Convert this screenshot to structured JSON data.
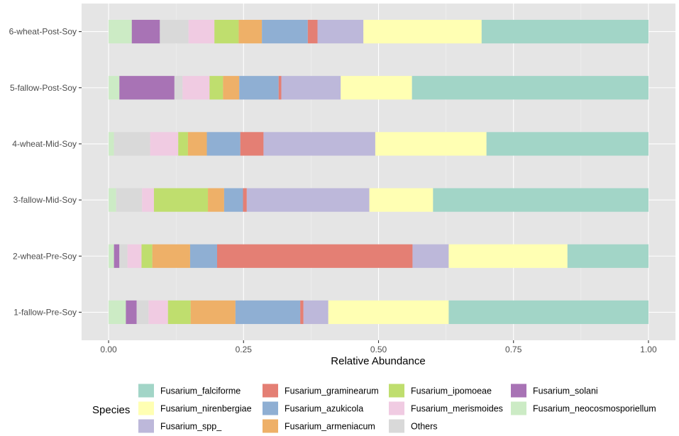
{
  "chart_data": {
    "type": "bar",
    "orientation": "horizontal",
    "stacked": true,
    "title": "",
    "xlabel": "Relative Abundance",
    "ylabel": "",
    "xlim": [
      -0.05,
      1.05
    ],
    "x_ticks": [
      0,
      0.25,
      0.5,
      0.75,
      1
    ],
    "x_tick_labels": [
      "0.00",
      "0.25",
      "0.50",
      "0.75",
      "1.00"
    ],
    "grid": true,
    "categories": [
      "1-fallow-Pre-Soy",
      "2-wheat-Pre-Soy",
      "3-fallow-Mid-Soy",
      "4-wheat-Mid-Soy",
      "5-fallow-Post-Soy",
      "6-wheat-Post-Soy"
    ],
    "legend": {
      "title": "Species",
      "position": "bottom",
      "order": [
        "Fusarium_falciforme",
        "Fusarium_nirenbergiae",
        "Fusarium_spp_",
        "Fusarium_graminearum",
        "Fusarium_azukicola",
        "Fusarium_armeniacum",
        "Fusarium_ipomoeae",
        "Fusarium_merismoides",
        "Others",
        "Fusarium_solani",
        "Fusarium_neocosmosporiellum"
      ]
    },
    "stack_order": [
      "Fusarium_neocosmosporiellum",
      "Fusarium_solani",
      "Others",
      "Fusarium_merismoides",
      "Fusarium_ipomoeae",
      "Fusarium_armeniacum",
      "Fusarium_azukicola",
      "Fusarium_graminearum",
      "Fusarium_spp_",
      "Fusarium_nirenbergiae",
      "Fusarium_falciforme"
    ],
    "series": [
      {
        "name": "Fusarium_neocosmosporiellum",
        "color": "#CCEBC5",
        "values": [
          0.032,
          0.01,
          0.014,
          0.01,
          0.02,
          0.043
        ]
      },
      {
        "name": "Fusarium_solani",
        "color": "#A873B5",
        "values": [
          0.02,
          0.01,
          0.0,
          0.0,
          0.102,
          0.052
        ]
      },
      {
        "name": "Others",
        "color": "#D9D9D9",
        "values": [
          0.022,
          0.015,
          0.048,
          0.067,
          0.015,
          0.053
        ]
      },
      {
        "name": "Fusarium_merismoides",
        "color": "#F0CBE2",
        "values": [
          0.036,
          0.026,
          0.022,
          0.052,
          0.05,
          0.048
        ]
      },
      {
        "name": "Fusarium_ipomoeae",
        "color": "#BFDE6E",
        "values": [
          0.042,
          0.02,
          0.1,
          0.018,
          0.025,
          0.045
        ]
      },
      {
        "name": "Fusarium_armeniacum",
        "color": "#EEB068",
        "values": [
          0.083,
          0.07,
          0.03,
          0.035,
          0.03,
          0.043
        ]
      },
      {
        "name": "Fusarium_azukicola",
        "color": "#8FAFD3",
        "values": [
          0.12,
          0.05,
          0.035,
          0.062,
          0.073,
          0.085
        ]
      },
      {
        "name": "Fusarium_graminearum",
        "color": "#E47F74",
        "values": [
          0.006,
          0.362,
          0.007,
          0.043,
          0.005,
          0.018
        ]
      },
      {
        "name": "Fusarium_spp_",
        "color": "#BDB8DA",
        "values": [
          0.046,
          0.067,
          0.227,
          0.207,
          0.11,
          0.085
        ]
      },
      {
        "name": "Fusarium_nirenbergiae",
        "color": "#FFFFB3",
        "values": [
          0.223,
          0.22,
          0.118,
          0.206,
          0.132,
          0.219
        ]
      },
      {
        "name": "Fusarium_falciforme",
        "color": "#A2D5C7",
        "values": [
          0.37,
          0.15,
          0.399,
          0.3,
          0.438,
          0.309
        ]
      }
    ]
  }
}
